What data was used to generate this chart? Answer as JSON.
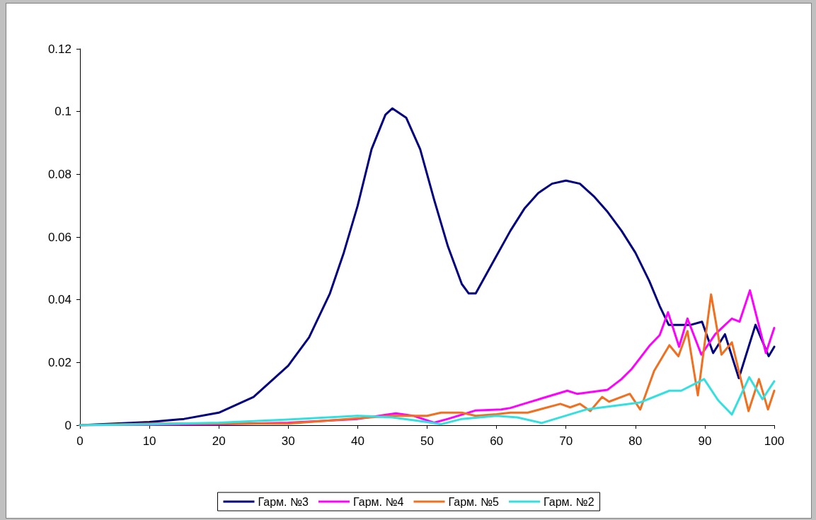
{
  "chart_data": {
    "type": "line",
    "xlim": [
      0,
      100
    ],
    "xticks": [
      0,
      10,
      20,
      30,
      40,
      50,
      60,
      70,
      80,
      90,
      100
    ],
    "ylim": [
      0,
      0.12
    ],
    "yticks": [
      0,
      0.02,
      0.04,
      0.06,
      0.08,
      0.1,
      0.12
    ],
    "grid": false,
    "legend": "bottom",
    "marker": "none",
    "line_style": "solid",
    "series": [
      {
        "name": "Гарм. №3",
        "color": "#000080",
        "x": [
          0,
          10,
          15,
          20,
          25,
          30,
          33,
          36,
          38,
          40,
          42,
          44,
          45,
          47,
          49,
          51,
          53,
          55,
          56,
          57,
          58,
          60,
          62,
          64,
          66,
          68,
          70,
          72,
          74,
          76,
          78,
          80,
          82,
          83.5,
          84.8,
          86,
          88,
          89.6,
          91.2,
          92.9,
          94.9,
          97.3,
          99.2,
          100
        ],
        "values": [
          0,
          0.001,
          0.002,
          0.004,
          0.009,
          0.019,
          0.028,
          0.042,
          0.055,
          0.07,
          0.088,
          0.099,
          0.101,
          0.098,
          0.088,
          0.072,
          0.057,
          0.045,
          0.042,
          0.042,
          0.046,
          0.054,
          0.062,
          0.069,
          0.074,
          0.077,
          0.078,
          0.077,
          0.073,
          0.068,
          0.062,
          0.055,
          0.046,
          0.038,
          0.032,
          0.032,
          0.032,
          0.033,
          0.023,
          0.029,
          0.015,
          0.032,
          0.022,
          0.025
        ]
      },
      {
        "name": "Гарм. №4",
        "color": "#ff00ff",
        "x": [
          0,
          20,
          30,
          40,
          45.5,
          48,
          51,
          53,
          57,
          60.7,
          62,
          64.5,
          70.2,
          71.6,
          76,
          78,
          79.5,
          82.1,
          83.5,
          84.7,
          86.3,
          87.5,
          89.5,
          91.5,
          93.9,
          95,
          96.5,
          98.8,
          100
        ],
        "values": [
          0,
          0.0003,
          0.0008,
          0.002,
          0.0038,
          0.003,
          0.0008,
          0.002,
          0.0047,
          0.005,
          0.0055,
          0.0072,
          0.011,
          0.01,
          0.0113,
          0.0147,
          0.018,
          0.0255,
          0.0287,
          0.036,
          0.025,
          0.034,
          0.0225,
          0.029,
          0.034,
          0.033,
          0.043,
          0.023,
          0.031
        ]
      },
      {
        "name": "Гарм. №5",
        "color": "#f07020",
        "x": [
          0,
          10,
          20,
          30,
          40,
          45,
          48,
          50,
          52,
          55,
          57,
          60,
          62,
          64.5,
          69.2,
          70.6,
          72,
          73.5,
          75.2,
          76.2,
          79.2,
          80.7,
          82.7,
          84.9,
          86.2,
          87.5,
          89,
          90.9,
          92.4,
          93.9,
          96.3,
          97.8,
          99.1,
          100
        ],
        "values": [
          0,
          0.0005,
          0.0005,
          0.0005,
          0.0022,
          0.003,
          0.003,
          0.003,
          0.004,
          0.004,
          0.003,
          0.0035,
          0.004,
          0.004,
          0.0068,
          0.0057,
          0.0068,
          0.0045,
          0.009,
          0.0075,
          0.01,
          0.005,
          0.0173,
          0.0255,
          0.022,
          0.03,
          0.0095,
          0.0417,
          0.0225,
          0.0264,
          0.0045,
          0.0147,
          0.005,
          0.011
        ]
      },
      {
        "name": "Гарм. №2",
        "color": "#33e0e0",
        "x": [
          0,
          10,
          20,
          30,
          40,
          45,
          50,
          52,
          55,
          60,
          63,
          66.5,
          72.9,
          80.6,
          84.9,
          86.6,
          89.9,
          91.9,
          93.9,
          96.4,
          98.3,
          100
        ],
        "values": [
          0,
          0.0003,
          0.0008,
          0.0018,
          0.003,
          0.0025,
          0.001,
          0.0003,
          0.002,
          0.003,
          0.0025,
          0.0007,
          0.005,
          0.0072,
          0.011,
          0.011,
          0.0147,
          0.008,
          0.0034,
          0.0153,
          0.0083,
          0.014
        ]
      }
    ]
  }
}
